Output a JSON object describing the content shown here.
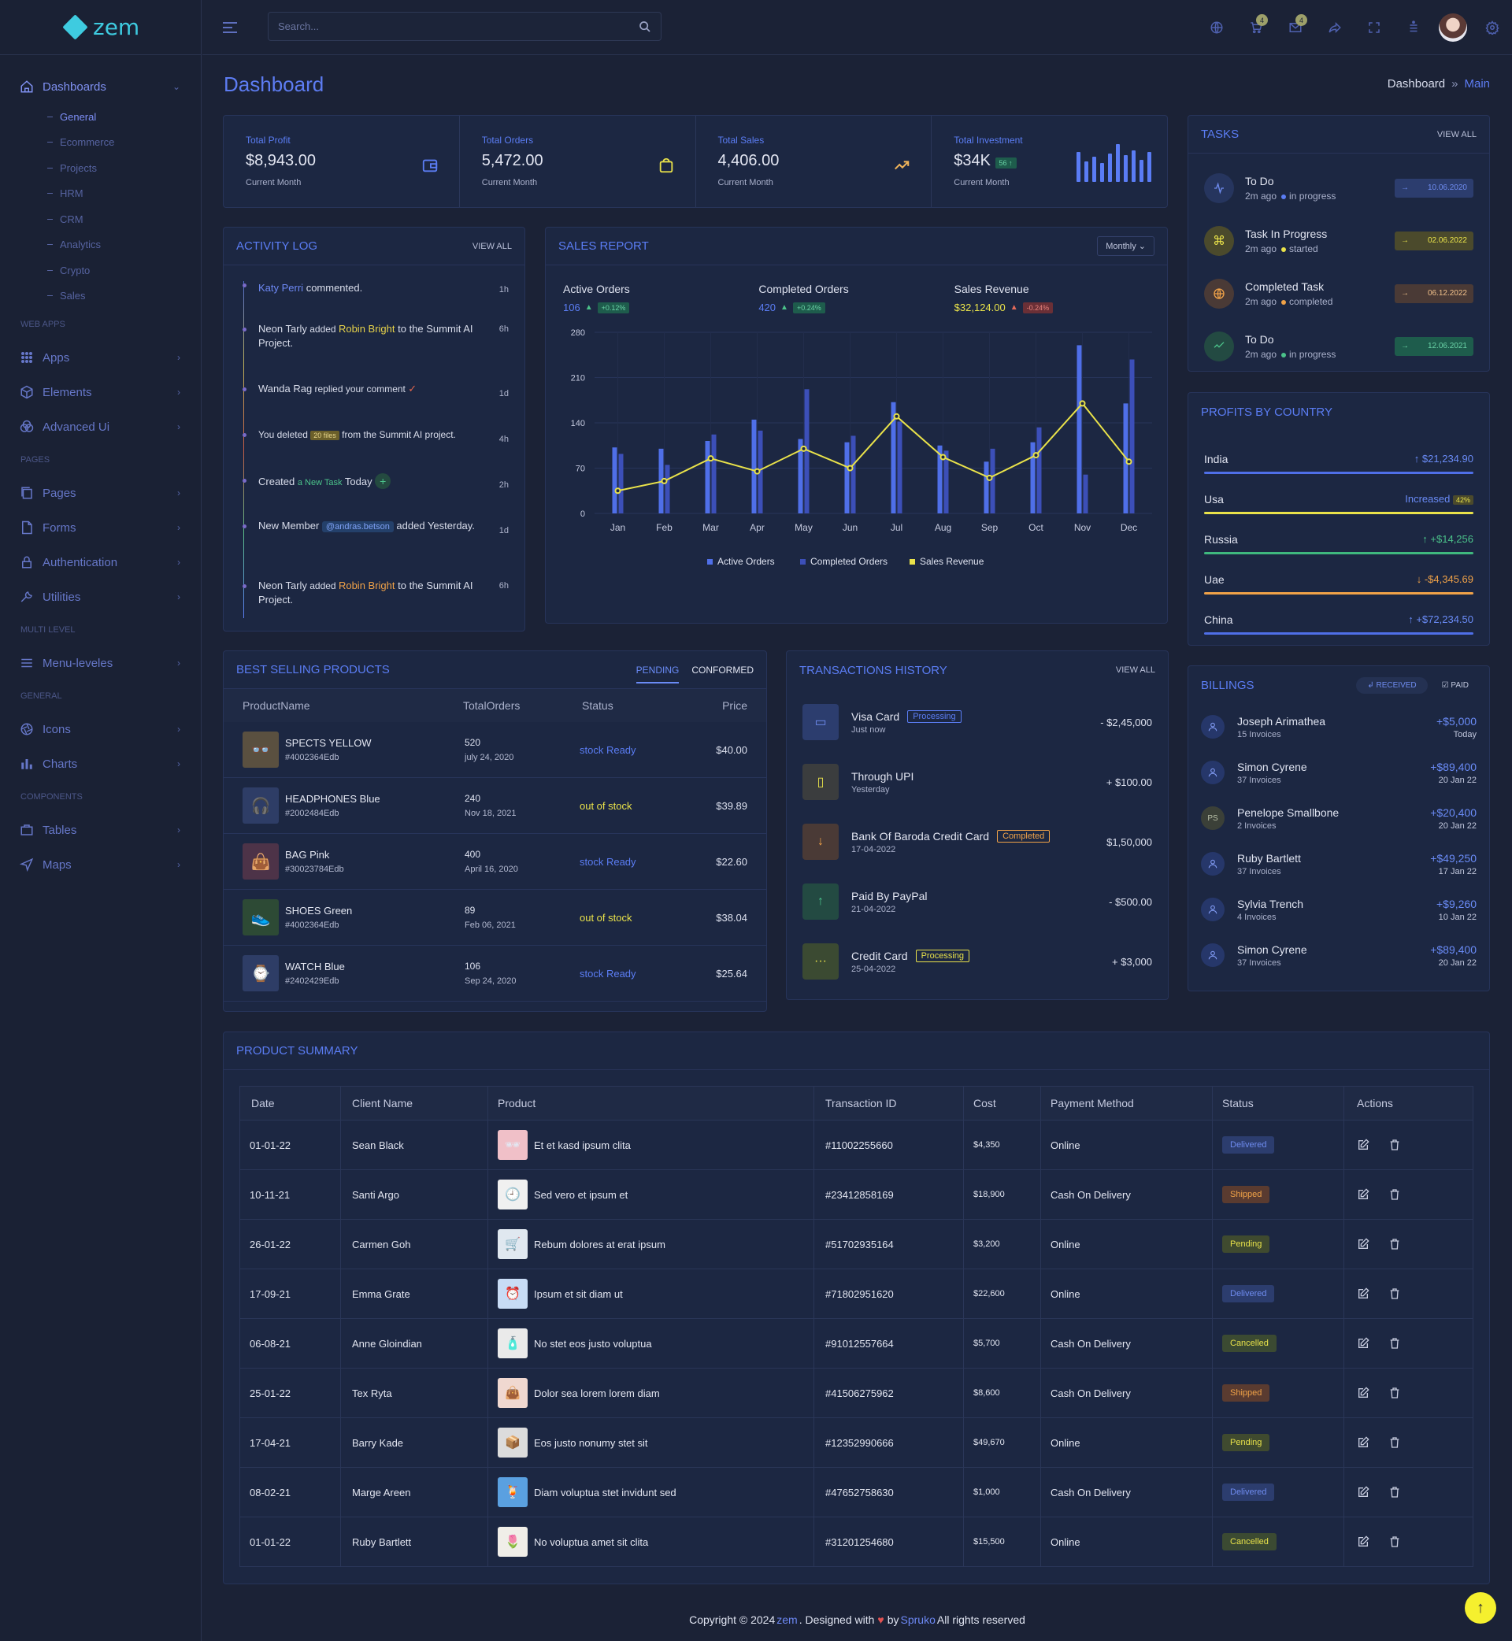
{
  "app": {
    "name": "zem"
  },
  "search": {
    "placeholder": "Search..."
  },
  "topbar": {
    "cart_count": "4",
    "mail_count": "4"
  },
  "sidebar": {
    "dashboards": "Dashboards",
    "sub": [
      "General",
      "Ecommerce",
      "Projects",
      "HRM",
      "CRM",
      "Analytics",
      "Crypto",
      "Sales"
    ],
    "cat_webapps": "WEB APPS",
    "apps": "Apps",
    "elements": "Elements",
    "advanced": "Advanced Ui",
    "cat_pages": "PAGES",
    "pages": "Pages",
    "forms": "Forms",
    "auth": "Authentication",
    "utilities": "Utilities",
    "cat_multi": "MULTI LEVEL",
    "menu": "Menu-leveles",
    "cat_general": "GENERAL",
    "icons": "Icons",
    "charts": "Charts",
    "cat_components": "COMPONENTS",
    "tables": "Tables",
    "maps": "Maps"
  },
  "header": {
    "title": "Dashboard",
    "crumb1": "Dashboard",
    "crumb_sep": "»",
    "crumb2": "Main"
  },
  "stats": [
    {
      "label": "Total Profit",
      "value": "$8,943.00",
      "sub": "Current Month"
    },
    {
      "label": "Total Orders",
      "value": "5,472.00",
      "sub": "Current Month"
    },
    {
      "label": "Total Sales",
      "value": "4,406.00",
      "sub": "Current Month"
    },
    {
      "label": "Total Investment",
      "value": "$34K",
      "chip": "56",
      "sub": "Current Month"
    }
  ],
  "activity": {
    "title": "ACTIVITY LOG",
    "view_all": "VIEW ALL",
    "items": [
      {
        "a": "Katy Perri",
        "b": " commented.",
        "time": "1h"
      },
      {
        "a": "Neon Tarly",
        "b": " added ",
        "c": "Robin Bright",
        "d": " to the Summit AI Project.",
        "time": "6h"
      },
      {
        "a": "Wanda Rag",
        "b": " replied your comment ",
        "mark": "✓",
        "time": "1d"
      },
      {
        "a": "You deleted ",
        "tag": "20 files",
        "b": " from the Summit AI project.",
        "time": "4h"
      },
      {
        "a": "Created ",
        "c": "a New Task",
        "d": " Today",
        "plus": "+",
        "time": "2h"
      },
      {
        "a": "New Member ",
        "tag": "@andras.betson",
        "b": " added Yesterday.",
        "time": "1d"
      },
      {
        "a": "Neon Tarly",
        "b": " added ",
        "c": "Robin Bright",
        "d": " to the Summit AI Project.",
        "time": "6h"
      }
    ]
  },
  "sales": {
    "title": "SALES REPORT",
    "filter": "Monthly",
    "metrics": [
      {
        "name": "Active Orders",
        "value": "106",
        "chip": "+0.12%"
      },
      {
        "name": "Completed Orders",
        "value": "420",
        "chip": "+0.24%"
      },
      {
        "name": "Sales Revenue",
        "value": "$32,124.00",
        "chip": "-0.24%"
      }
    ]
  },
  "chart_data": {
    "type": "bar",
    "categories": [
      "Jan",
      "Feb",
      "Mar",
      "Apr",
      "May",
      "Jun",
      "Jul",
      "Aug",
      "Sep",
      "Oct",
      "Nov",
      "Dec"
    ],
    "series": [
      {
        "name": "Active Orders",
        "values": [
          102,
          100,
          112,
          145,
          115,
          110,
          172,
          105,
          80,
          110,
          260,
          170
        ]
      },
      {
        "name": "Completed Orders",
        "values": [
          92,
          75,
          122,
          128,
          192,
          120,
          142,
          97,
          100,
          133,
          60,
          238
        ]
      },
      {
        "name": "Sales Revenue",
        "type": "line",
        "values": [
          35,
          50,
          85,
          65,
          100,
          70,
          150,
          87,
          55,
          90,
          170,
          80
        ]
      }
    ],
    "yticks": [
      0,
      70,
      140,
      210,
      280
    ],
    "ylim": [
      0,
      280
    ],
    "colors": [
      "#4f6fe8",
      "#3c4fb8",
      "#e9e24a"
    ]
  },
  "tasks": {
    "title": "TASKS",
    "view_all": "VIEW ALL",
    "items": [
      {
        "name": "To Do",
        "time": "2m ago",
        "state": "in progress",
        "date": "10.06.2020"
      },
      {
        "name": "Task In Progress",
        "time": "2m ago",
        "state": "started",
        "date": "02.06.2022"
      },
      {
        "name": "Completed Task",
        "time": "2m ago",
        "state": "completed",
        "date": "06.12.2022"
      },
      {
        "name": "To Do",
        "time": "2m ago",
        "state": "in progress",
        "date": "12.06.2021"
      }
    ]
  },
  "profits": {
    "title": "PROFITS BY COUNTRY",
    "items": [
      {
        "name": "India",
        "value": "$21,234.90",
        "arrow": "↑"
      },
      {
        "name": "Usa",
        "value": "Increased",
        "chip": "42%"
      },
      {
        "name": "Russia",
        "value": "+$14,256",
        "arrow": "↑"
      },
      {
        "name": "Uae",
        "value": "-$4,345.69",
        "arrow": "↓"
      },
      {
        "name": "China",
        "value": "+$72,234.50",
        "arrow": "↑"
      }
    ]
  },
  "billings": {
    "title": "BILLINGS",
    "tab1": "RECEIVED",
    "tab2": "PAID",
    "items": [
      {
        "name": "Joseph Arimathea",
        "sub": "15 Invoices",
        "amt": "+$5,000",
        "date": "Today"
      },
      {
        "name": "Simon Cyrene",
        "sub": "37 Invoices",
        "amt": "+$89,400",
        "date": "20 Jan 22"
      },
      {
        "name": "Penelope Smallbone",
        "sub": "2 Invoices",
        "amt": "+$20,400",
        "date": "20 Jan 22",
        "init": "PS"
      },
      {
        "name": "Ruby Bartlett",
        "sub": "37 Invoices",
        "amt": "+$49,250",
        "date": "17 Jan 22"
      },
      {
        "name": "Sylvia Trench",
        "sub": "4 Invoices",
        "amt": "+$9,260",
        "date": "10 Jan 22"
      },
      {
        "name": "Simon Cyrene",
        "sub": "37 Invoices",
        "amt": "+$89,400",
        "date": "20 Jan 22"
      }
    ]
  },
  "best": {
    "title": "BEST SELLING PRODUCTS",
    "tab1": "PENDING",
    "tab2": "CONFORMED",
    "cols": [
      "ProductName",
      "TotalOrders",
      "Status",
      "Price"
    ],
    "rows": [
      {
        "name": "SPECTS YELLOW",
        "id": "#4002364Edb",
        "orders": "520",
        "date": "july 24, 2020",
        "status": "stock Ready",
        "price": "$40.00"
      },
      {
        "name": "HEADPHONES Blue",
        "id": "#2002484Edb",
        "orders": "240",
        "date": "Nov 18, 2021",
        "status": "out of stock",
        "price": "$39.89"
      },
      {
        "name": "BAG Pink",
        "id": "#30023784Edb",
        "orders": "400",
        "date": "April 16, 2020",
        "status": "stock Ready",
        "price": "$22.60"
      },
      {
        "name": "SHOES Green",
        "id": "#4002364Edb",
        "orders": "89",
        "date": "Feb 06, 2021",
        "status": "out of stock",
        "price": "$38.04"
      },
      {
        "name": "WATCH Blue",
        "id": "#2402429Edb",
        "orders": "106",
        "date": "Sep 24, 2020",
        "status": "stock Ready",
        "price": "$25.64"
      }
    ]
  },
  "trans": {
    "title": "TRANSACTIONS HISTORY",
    "view_all": "VIEW ALL",
    "items": [
      {
        "name": "Visa Card",
        "pill": "Processing",
        "sub": "Just now",
        "amt": "- $2,45,000"
      },
      {
        "name": "Through UPI",
        "sub": "Yesterday",
        "amt": "+ $100.00"
      },
      {
        "name": "Bank Of Baroda Credit Card",
        "pill": "Completed",
        "sub": "17-04-2022",
        "amt": "$1,50,000"
      },
      {
        "name": "Paid By PayPal",
        "sub": "21-04-2022",
        "amt": "- $500.00"
      },
      {
        "name": "Credit Card",
        "pill": "Processing",
        "sub": "25-04-2022",
        "amt": "+ $3,000"
      }
    ]
  },
  "summary": {
    "title": "PRODUCT SUMMARY",
    "cols": [
      "Date",
      "Client Name",
      "Product",
      "Transaction ID",
      "Cost",
      "Payment Method",
      "Status",
      "Actions"
    ],
    "rows": [
      {
        "date": "01-01-22",
        "client": "Sean Black",
        "product": "Et et kasd ipsum clita",
        "tid": "#11002255660",
        "cost": "$4,350",
        "pay": "Online",
        "status": "Delivered"
      },
      {
        "date": "10-11-21",
        "client": "Santi Argo",
        "product": "Sed vero et ipsum et",
        "tid": "#23412858169",
        "cost": "$18,900",
        "pay": "Cash On Delivery",
        "status": "Shipped"
      },
      {
        "date": "26-01-22",
        "client": "Carmen Goh",
        "product": "Rebum dolores at erat ipsum",
        "tid": "#51702935164",
        "cost": "$3,200",
        "pay": "Online",
        "status": "Pending"
      },
      {
        "date": "17-09-21",
        "client": "Emma Grate",
        "product": "Ipsum et sit diam ut",
        "tid": "#71802951620",
        "cost": "$22,600",
        "pay": "Online",
        "status": "Delivered"
      },
      {
        "date": "06-08-21",
        "client": "Anne Gloindian",
        "product": "No stet eos justo voluptua",
        "tid": "#91012557664",
        "cost": "$5,700",
        "pay": "Cash On Delivery",
        "status": "Cancelled"
      },
      {
        "date": "25-01-22",
        "client": "Tex Ryta",
        "product": "Dolor sea lorem lorem diam",
        "tid": "#41506275962",
        "cost": "$8,600",
        "pay": "Cash On Delivery",
        "status": "Shipped"
      },
      {
        "date": "17-04-21",
        "client": "Barry Kade",
        "product": "Eos justo nonumy stet sit",
        "tid": "#12352990666",
        "cost": "$49,670",
        "pay": "Online",
        "status": "Pending"
      },
      {
        "date": "08-02-21",
        "client": "Marge Areen",
        "product": "Diam voluptua stet invidunt sed",
        "tid": "#47652758630",
        "cost": "$1,000",
        "pay": "Cash On Delivery",
        "status": "Delivered"
      },
      {
        "date": "01-01-22",
        "client": "Ruby Bartlett",
        "product": "No voluptua amet sit clita",
        "tid": "#31201254680",
        "cost": "$15,500",
        "pay": "Online",
        "status": "Cancelled"
      }
    ]
  },
  "footer": {
    "pre": "Copyright © 2024 ",
    "brand": "zem",
    "mid": ". Designed with ",
    "by": " by ",
    "author": "Spruko",
    "post": " All rights reserved"
  }
}
